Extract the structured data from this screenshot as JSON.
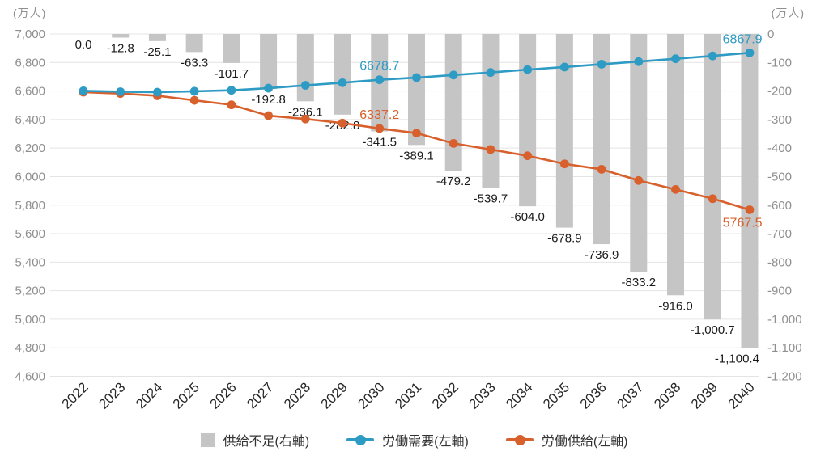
{
  "legend": [
    {
      "key": "supply-shortage",
      "label": "供給不足(右軸)",
      "color": "#c5c5c5",
      "marker": "bar"
    },
    {
      "key": "labor-demand",
      "label": "労働需要(左軸)",
      "color": "#2d9bc4",
      "marker": "line-dot"
    },
    {
      "key": "labor-supply",
      "label": "労働供給(左軸)",
      "color": "#d8602c",
      "marker": "line-dot"
    }
  ],
  "chart_data": {
    "type": "combo",
    "categories": [
      "2022",
      "2023",
      "2024",
      "2025",
      "2026",
      "2027",
      "2028",
      "2029",
      "2030",
      "2031",
      "2032",
      "2033",
      "2034",
      "2035",
      "2036",
      "2037",
      "2038",
      "2039",
      "2040"
    ],
    "series": [
      {
        "name": "供給不足(右軸)",
        "kind": "bar",
        "axis": "right",
        "color": "#c5c5c5",
        "values": [
          0.0,
          -12.8,
          -25.1,
          -63.3,
          -101.7,
          -192.8,
          -236.1,
          -282.8,
          -341.5,
          -389.1,
          -479.2,
          -539.7,
          -604.0,
          -678.9,
          -736.9,
          -833.2,
          -916.0,
          -1000.7,
          -1100.4
        ],
        "value_labels": [
          "0.0",
          "-12.8",
          "-25.1",
          "-63.3",
          "-101.7",
          "-192.8",
          "-236.1",
          "-282.8",
          "-341.5",
          "-389.1",
          "-479.2",
          "-539.7",
          "-604.0",
          "-678.9",
          "-736.9",
          "-833.2",
          "-916.0",
          "-1,000.7",
          "-1,100.4"
        ],
        "label_color": "#1a1a1a"
      },
      {
        "name": "労働需要(左軸)",
        "kind": "line",
        "axis": "left",
        "color": "#2d9bc4",
        "values": [
          6601,
          6595,
          6592,
          6598,
          6605,
          6620,
          6640,
          6658,
          6678.7,
          6694,
          6712,
          6730,
          6750,
          6768,
          6788,
          6806,
          6826,
          6846,
          6867.9
        ],
        "point_labels": [
          {
            "index": 8,
            "text": "6678.7",
            "pos": "above"
          },
          {
            "index": 18,
            "text": "6867.9",
            "pos": "above"
          }
        ]
      },
      {
        "name": "労働供給(左軸)",
        "kind": "line",
        "axis": "left",
        "color": "#d8602c",
        "values": [
          6592,
          6582.2,
          6566.9,
          6534.7,
          6503.3,
          6427.2,
          6403.9,
          6375.2,
          6337.2,
          6304.9,
          6232.8,
          6190.3,
          6146.0,
          6089.1,
          6051.1,
          5972.8,
          5910.0,
          5845.3,
          5767.5
        ],
        "point_labels": [
          {
            "index": 8,
            "text": "6337.2",
            "pos": "above"
          },
          {
            "index": 18,
            "text": "5767.5",
            "pos": "below"
          }
        ]
      }
    ],
    "left_axis": {
      "title": "(万人)",
      "min": 4600,
      "max": 7000,
      "step": 200,
      "tick_labels": [
        "7,000",
        "6,800",
        "6,600",
        "6,400",
        "6,200",
        "6,000",
        "5,800",
        "5,600",
        "5,400",
        "5,200",
        "5,000",
        "4,800",
        "4,600"
      ]
    },
    "right_axis": {
      "title": "(万人)",
      "min": -1200,
      "max": 0,
      "step": -100,
      "tick_labels": [
        "0",
        "-100",
        "-200",
        "-300",
        "-400",
        "-500",
        "-600",
        "-700",
        "-800",
        "-900",
        "-1,000",
        "-1,100",
        "-1,200"
      ]
    },
    "grid": true,
    "legend_position": "bottom",
    "grid_color": "#e4e4e4",
    "tick_color": "#8f8f8f",
    "year_label_color": "#262626"
  }
}
